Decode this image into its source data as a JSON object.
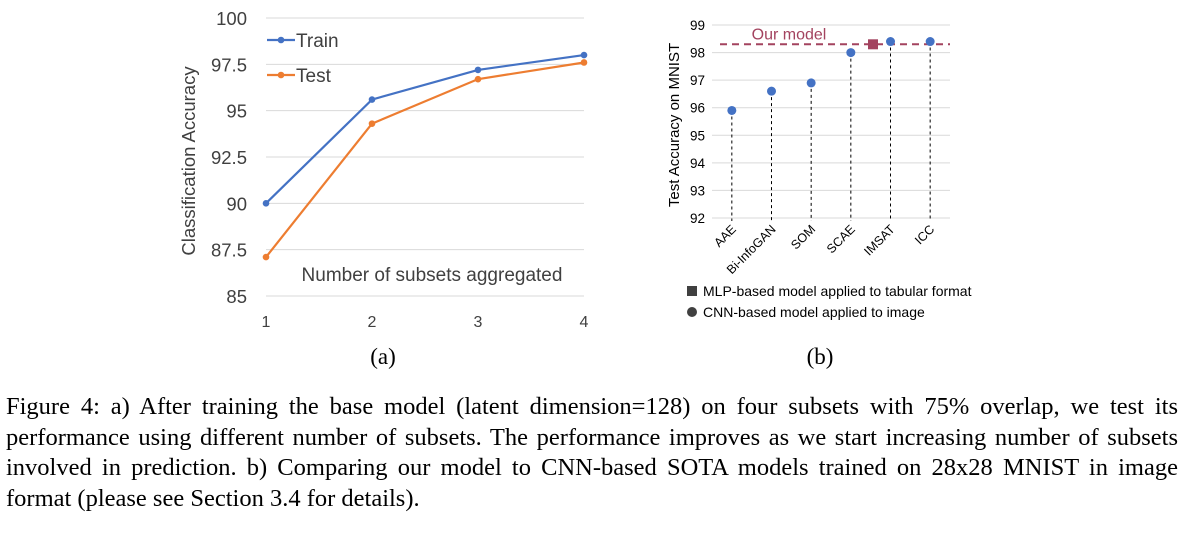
{
  "chart_data": [
    {
      "panel": "(a)",
      "type": "line",
      "title": "",
      "xlabel": "Number of subsets aggregated",
      "ylabel": "Classification Accuracy",
      "x": [
        1,
        2,
        3,
        4
      ],
      "x_tick_labels": [
        "1",
        "2",
        "3",
        "4"
      ],
      "y_tick_labels": [
        "100",
        "97.5",
        "95",
        "92.5",
        "90",
        "87.5",
        "85"
      ],
      "ylim": [
        85,
        100
      ],
      "grid": true,
      "legend_position": "top-left",
      "series": [
        {
          "name": "Train",
          "values": [
            90.0,
            95.6,
            97.2,
            98.0
          ],
          "color": "#4472C4"
        },
        {
          "name": "Test",
          "values": [
            87.1,
            94.3,
            96.7,
            97.6
          ],
          "color": "#ED7D31"
        }
      ]
    },
    {
      "panel": "(b)",
      "type": "scatter",
      "title": "",
      "xlabel": "",
      "ylabel": "Test Accuracy on MNIST",
      "categories": [
        "AAE",
        "Bi-InfoGAN",
        "SOM",
        "SCAE",
        "IMSAT",
        "ICC"
      ],
      "values": [
        95.9,
        96.6,
        96.9,
        98.0,
        98.4,
        98.4
      ],
      "y_tick_labels": [
        "99",
        "98",
        "97",
        "96",
        "95",
        "94",
        "93",
        "92"
      ],
      "ylim": [
        92,
        99
      ],
      "grid": true,
      "color": "#4472C4",
      "our_model": {
        "label": "Our model",
        "value": 98.3,
        "color": "#A3435F"
      },
      "legend": [
        {
          "marker": "square",
          "label": "MLP-based model applied to tabular format"
        },
        {
          "marker": "circle",
          "label": "CNN-based model applied to image"
        }
      ]
    }
  ],
  "caption": "Figure 4: a) After training the base model (latent dimension=128) on four subsets with 75% overlap, we test its performance using different number of subsets. The performance improves as we start increasing number of subsets involved in prediction. b) Comparing our model to CNN-based SOTA models trained on 28x28 MNIST in image format (please see Section 3.4 for details)."
}
